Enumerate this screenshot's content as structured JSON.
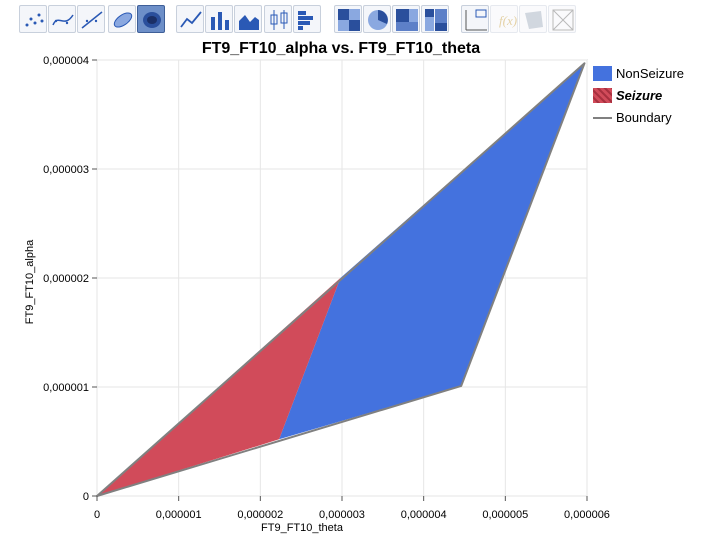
{
  "toolbar": {
    "buttons": [
      {
        "name": "points-icon",
        "state": "normal"
      },
      {
        "name": "smoother-icon",
        "state": "normal"
      },
      {
        "name": "line-of-fit-icon",
        "state": "normal"
      },
      {
        "name": "ellipse-icon",
        "state": "normal"
      },
      {
        "name": "contour-icon",
        "state": "active"
      },
      {
        "name": "line-icon",
        "state": "normal"
      },
      {
        "name": "bar-icon",
        "state": "normal"
      },
      {
        "name": "area-icon",
        "state": "normal"
      },
      {
        "name": "box-plot-icon",
        "state": "normal"
      },
      {
        "name": "histogram-icon",
        "state": "normal"
      },
      {
        "name": "heatmap-icon",
        "state": "normal"
      },
      {
        "name": "pie-icon",
        "state": "normal"
      },
      {
        "name": "treemap-icon",
        "state": "normal"
      },
      {
        "name": "mosaic-icon",
        "state": "normal"
      },
      {
        "name": "caption-box-icon",
        "state": "normal"
      },
      {
        "name": "formula-icon",
        "state": "disabled"
      },
      {
        "name": "map-shapes-icon",
        "state": "disabled"
      },
      {
        "name": "custom-graph-icon",
        "state": "disabled"
      }
    ]
  },
  "chart_data": {
    "type": "area",
    "title": "FT9_FT10_alpha vs. FT9_FT10_theta",
    "xlabel": "FT9_FT10_theta",
    "ylabel": "FT9_FT10_alpha",
    "xlim": [
      0,
      6e-06
    ],
    "ylim": [
      0,
      4e-06
    ],
    "x_ticks": [
      0,
      1e-06,
      2e-06,
      3e-06,
      4e-06,
      5e-06,
      6e-06
    ],
    "x_tick_labels": [
      "0",
      "0,000001",
      "0,000002",
      "0,000003",
      "0,000004",
      "0,000005",
      "0,000006"
    ],
    "y_ticks": [
      0,
      1e-06,
      2e-06,
      3e-06,
      4e-06
    ],
    "y_tick_labels": [
      "0",
      "0,000001",
      "0,000002",
      "0,000003",
      "0,000004"
    ],
    "grid": true,
    "legend_position": "right",
    "series": [
      {
        "name": "NonSeizure",
        "color": "#4472de",
        "polygon": [
          [
            2.23e-06,
            5.2e-07
          ],
          [
            2.98e-06,
            2e-06
          ],
          [
            5.97e-06,
            3.97e-06
          ],
          [
            4.46e-06,
            1.01e-06
          ]
        ]
      },
      {
        "name": "Seizure",
        "color": "#d14b5a",
        "polygon": [
          [
            0,
            0
          ],
          [
            2.98e-06,
            2e-06
          ],
          [
            2.23e-06,
            5.2e-07
          ]
        ]
      },
      {
        "name": "Boundary",
        "color": "#808080",
        "polygon": [
          [
            0,
            0
          ],
          [
            5.97e-06,
            3.97e-06
          ],
          [
            4.46e-06,
            1.01e-06
          ]
        ]
      }
    ]
  },
  "legend": {
    "items": [
      {
        "label": "NonSeizure",
        "kind": "swatch",
        "color": "#4472de"
      },
      {
        "label": "Seizure",
        "kind": "hatched",
        "color": "#d14b5a"
      },
      {
        "label": "Boundary",
        "kind": "line",
        "color": "#808080"
      }
    ]
  }
}
